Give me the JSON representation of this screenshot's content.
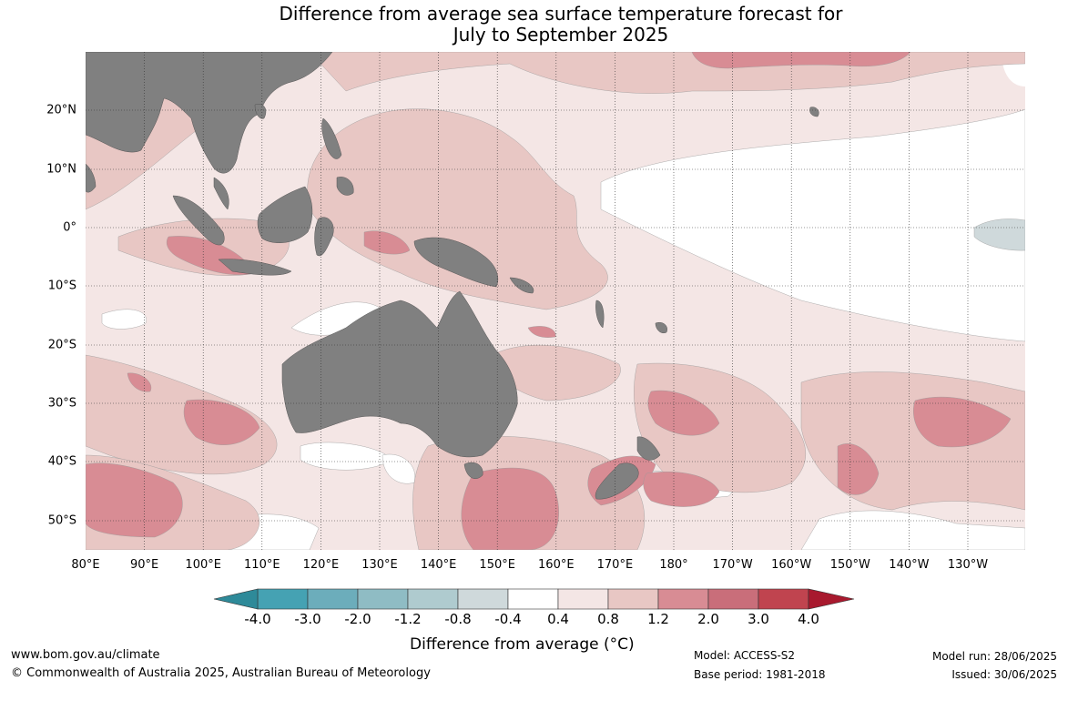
{
  "title": {
    "line1": "Difference from average sea surface temperature forecast for",
    "line2": "July to September 2025"
  },
  "map": {
    "longitude_labels": [
      "80°E",
      "90°E",
      "100°E",
      "110°E",
      "120°E",
      "130°E",
      "140°E",
      "150°E",
      "160°E",
      "170°E",
      "180°",
      "170°W",
      "160°W",
      "150°W",
      "140°W",
      "130°W"
    ],
    "latitude_labels": [
      "20°N",
      "10°N",
      "0°",
      "10°S",
      "20°S",
      "30°S",
      "40°S",
      "50°S"
    ],
    "land_color": "#808080",
    "ocean_color": "#ffffff"
  },
  "colorbar": {
    "title": "Difference from average (°C)",
    "tick_labels": [
      "-4.0",
      "-3.0",
      "-2.0",
      "-1.2",
      "-0.8",
      "-0.4",
      "0.4",
      "0.8",
      "1.2",
      "2.0",
      "3.0",
      "4.0"
    ],
    "colors": {
      "under": "#2e8a99",
      "c1": "#45a2b3",
      "c2": "#6cadbb",
      "c3": "#8fbcc4",
      "c4": "#afcbcf",
      "c5": "#cfd9db",
      "c6": "#ffffff",
      "c7": "#f4e6e5",
      "c8": "#e8c7c4",
      "c9": "#d88c94",
      "c10": "#c96e7a",
      "c11": "#c0444f",
      "over": "#a8192e"
    }
  },
  "footer": {
    "url": "www.bom.gov.au/climate",
    "copyright": "© Commonwealth of Australia 2025, Australian Bureau of Meteorology",
    "model": "Model: ACCESS-S2",
    "base_period": "Base period: 1981-2018",
    "model_run": "Model run: 28/06/2025",
    "issued": "Issued: 30/06/2025"
  }
}
